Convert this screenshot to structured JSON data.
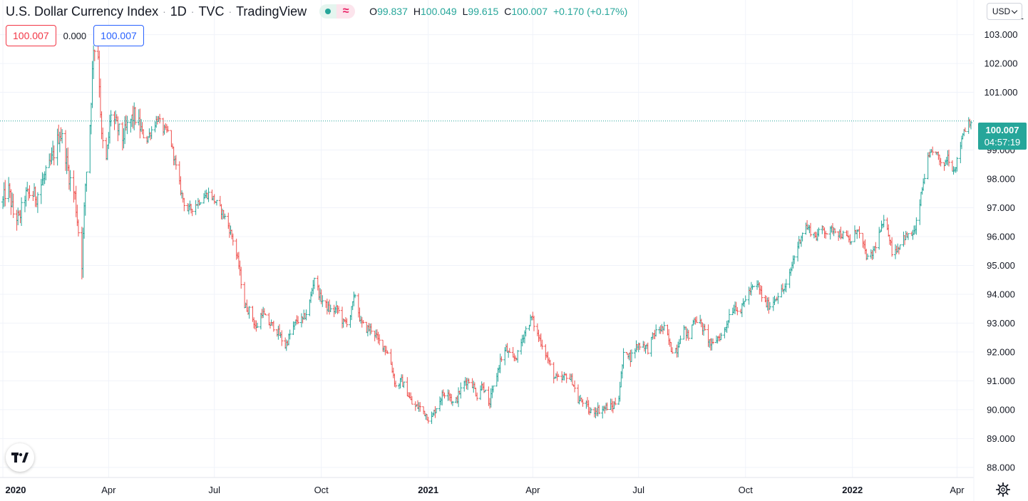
{
  "header": {
    "symbol_name": "U.S. Dollar Currency Index",
    "interval": "1D",
    "exchange": "TVC",
    "source": "TradingView",
    "separator": "·",
    "approx_symbol": "≈",
    "ohlc": {
      "o_label": "O",
      "o_value": "99.837",
      "h_label": "H",
      "h_value": "100.049",
      "l_label": "L",
      "l_value": "99.615",
      "c_label": "C",
      "c_value": "100.007",
      "change": "+0.170 (+0.17%)"
    }
  },
  "badges": {
    "bid": "100.007",
    "spread": "0.000",
    "ask": "100.007"
  },
  "currency_button": {
    "label": "USD"
  },
  "last_price": {
    "price": "100.007",
    "countdown": "04:57:19"
  },
  "icons": {
    "logo": "tradingview-logo-icon",
    "settings": "gear-icon",
    "dropdown": "chevron-down-icon"
  },
  "colors": {
    "up": "#26a69a",
    "down": "#ef5350",
    "grid": "#f0f3fa",
    "text": "#131722",
    "blue": "#2962ff"
  },
  "chart_data": {
    "type": "ohlc-bar",
    "ylim": [
      87.7,
      104.2
    ],
    "y_ticks": [
      88,
      89,
      90,
      91,
      92,
      93,
      94,
      95,
      96,
      97,
      98,
      99,
      101,
      102,
      103
    ],
    "y_tick_labels": [
      "88.000",
      "89.000",
      "90.000",
      "91.000",
      "92.000",
      "93.000",
      "94.000",
      "95.000",
      "96.000",
      "97.000",
      "98.000",
      "99.000",
      "101.000",
      "102.000",
      "103.000"
    ],
    "top_partial_label": "1",
    "x_range": [
      "2020-01-01",
      "2022-04-13"
    ],
    "x_ticks": [
      {
        "label": "2020",
        "date": "2020-01-01",
        "bold": true
      },
      {
        "label": "Apr",
        "date": "2020-04-01",
        "bold": false
      },
      {
        "label": "Jul",
        "date": "2020-07-01",
        "bold": false
      },
      {
        "label": "Oct",
        "date": "2020-10-01",
        "bold": false
      },
      {
        "label": "2021",
        "date": "2021-01-01",
        "bold": true
      },
      {
        "label": "Apr",
        "date": "2021-04-01",
        "bold": false
      },
      {
        "label": "Jul",
        "date": "2021-07-01",
        "bold": false
      },
      {
        "label": "Oct",
        "date": "2021-10-01",
        "bold": false
      },
      {
        "label": "2022",
        "date": "2022-01-01",
        "bold": true
      },
      {
        "label": "Apr",
        "date": "2022-04-01",
        "bold": false
      }
    ],
    "last_price_line": 100.007,
    "close_series": [
      [
        "2020-01-01",
        97.2
      ],
      [
        "2020-01-05",
        97.8
      ],
      [
        "2020-01-10",
        96.8
      ],
      [
        "2020-01-15",
        96.6
      ],
      [
        "2020-01-20",
        97.4
      ],
      [
        "2020-01-25",
        97.5
      ],
      [
        "2020-01-30",
        97.4
      ],
      [
        "2020-02-04",
        97.9
      ],
      [
        "2020-02-09",
        98.3
      ],
      [
        "2020-02-14",
        98.9
      ],
      [
        "2020-02-19",
        99.6
      ],
      [
        "2020-02-22",
        99.3
      ],
      [
        "2020-02-27",
        98.1
      ],
      [
        "2020-03-03",
        97.4
      ],
      [
        "2020-03-06",
        96.2
      ],
      [
        "2020-03-09",
        95.1
      ],
      [
        "2020-03-12",
        97.8
      ],
      [
        "2020-03-16",
        99.9
      ],
      [
        "2020-03-19",
        102.6
      ],
      [
        "2020-03-23",
        102.3
      ],
      [
        "2020-03-26",
        99.4
      ],
      [
        "2020-03-30",
        98.6
      ],
      [
        "2020-04-03",
        100.3
      ],
      [
        "2020-04-08",
        99.8
      ],
      [
        "2020-04-13",
        99.4
      ],
      [
        "2020-04-18",
        99.9
      ],
      [
        "2020-04-23",
        100.2
      ],
      [
        "2020-04-28",
        99.8
      ],
      [
        "2020-05-03",
        99.3
      ],
      [
        "2020-05-08",
        99.7
      ],
      [
        "2020-05-13",
        100.1
      ],
      [
        "2020-05-18",
        99.7
      ],
      [
        "2020-05-23",
        99.6
      ],
      [
        "2020-05-28",
        98.6
      ],
      [
        "2020-06-02",
        97.6
      ],
      [
        "2020-06-07",
        96.9
      ],
      [
        "2020-06-12",
        97.0
      ],
      [
        "2020-06-17",
        97.2
      ],
      [
        "2020-06-22",
        97.4
      ],
      [
        "2020-06-27",
        97.5
      ],
      [
        "2020-07-02",
        97.2
      ],
      [
        "2020-07-07",
        96.9
      ],
      [
        "2020-07-12",
        96.5
      ],
      [
        "2020-07-17",
        95.9
      ],
      [
        "2020-07-22",
        95.0
      ],
      [
        "2020-07-27",
        93.6
      ],
      [
        "2020-08-01",
        93.4
      ],
      [
        "2020-08-06",
        92.8
      ],
      [
        "2020-08-11",
        93.4
      ],
      [
        "2020-08-16",
        93.0
      ],
      [
        "2020-08-21",
        92.9
      ],
      [
        "2020-08-26",
        92.6
      ],
      [
        "2020-08-31",
        92.2
      ],
      [
        "2020-09-05",
        92.7
      ],
      [
        "2020-09-10",
        93.1
      ],
      [
        "2020-09-15",
        93.1
      ],
      [
        "2020-09-20",
        93.5
      ],
      [
        "2020-09-25",
        94.6
      ],
      [
        "2020-09-30",
        93.9
      ],
      [
        "2020-10-05",
        93.6
      ],
      [
        "2020-10-10",
        93.4
      ],
      [
        "2020-10-15",
        93.5
      ],
      [
        "2020-10-20",
        93.0
      ],
      [
        "2020-10-25",
        93.1
      ],
      [
        "2020-10-30",
        94.0
      ],
      [
        "2020-11-04",
        93.0
      ],
      [
        "2020-11-09",
        92.8
      ],
      [
        "2020-11-14",
        92.8
      ],
      [
        "2020-11-19",
        92.4
      ],
      [
        "2020-11-24",
        92.2
      ],
      [
        "2020-11-29",
        91.8
      ],
      [
        "2020-12-04",
        90.8
      ],
      [
        "2020-12-09",
        91.0
      ],
      [
        "2020-12-14",
        90.6
      ],
      [
        "2020-12-19",
        90.1
      ],
      [
        "2020-12-24",
        90.1
      ],
      [
        "2020-12-29",
        89.9
      ],
      [
        "2021-01-03",
        89.6
      ],
      [
        "2021-01-08",
        90.1
      ],
      [
        "2021-01-13",
        90.5
      ],
      [
        "2021-01-18",
        90.7
      ],
      [
        "2021-01-23",
        90.1
      ],
      [
        "2021-01-28",
        90.6
      ],
      [
        "2021-02-02",
        91.0
      ],
      [
        "2021-02-07",
        91.0
      ],
      [
        "2021-02-12",
        90.5
      ],
      [
        "2021-02-17",
        90.9
      ],
      [
        "2021-02-22",
        90.1
      ],
      [
        "2021-02-27",
        90.9
      ],
      [
        "2021-03-04",
        91.7
      ],
      [
        "2021-03-09",
        92.1
      ],
      [
        "2021-03-14",
        91.7
      ],
      [
        "2021-03-19",
        91.9
      ],
      [
        "2021-03-24",
        92.6
      ],
      [
        "2021-03-31",
        93.2
      ],
      [
        "2021-04-05",
        92.6
      ],
      [
        "2021-04-10",
        92.2
      ],
      [
        "2021-04-15",
        91.6
      ],
      [
        "2021-04-20",
        91.1
      ],
      [
        "2021-04-25",
        91.0
      ],
      [
        "2021-04-30",
        91.2
      ],
      [
        "2021-05-05",
        91.0
      ],
      [
        "2021-05-10",
        90.3
      ],
      [
        "2021-05-15",
        90.3
      ],
      [
        "2021-05-20",
        89.9
      ],
      [
        "2021-05-25",
        90.0
      ],
      [
        "2021-05-30",
        90.0
      ],
      [
        "2021-06-04",
        90.1
      ],
      [
        "2021-06-09",
        90.1
      ],
      [
        "2021-06-14",
        90.5
      ],
      [
        "2021-06-19",
        92.2
      ],
      [
        "2021-06-24",
        91.8
      ],
      [
        "2021-06-29",
        92.2
      ],
      [
        "2021-07-04",
        92.3
      ],
      [
        "2021-07-09",
        92.1
      ],
      [
        "2021-07-14",
        92.6
      ],
      [
        "2021-07-19",
        92.8
      ],
      [
        "2021-07-24",
        92.8
      ],
      [
        "2021-07-29",
        92.1
      ],
      [
        "2021-08-03",
        92.1
      ],
      [
        "2021-08-08",
        92.9
      ],
      [
        "2021-08-13",
        92.5
      ],
      [
        "2021-08-18",
        93.2
      ],
      [
        "2021-08-23",
        93.0
      ],
      [
        "2021-08-28",
        92.6
      ],
      [
        "2021-09-02",
        92.2
      ],
      [
        "2021-09-07",
        92.5
      ],
      [
        "2021-09-12",
        92.6
      ],
      [
        "2021-09-17",
        93.3
      ],
      [
        "2021-09-22",
        93.6
      ],
      [
        "2021-09-27",
        93.4
      ],
      [
        "2021-10-02",
        94.0
      ],
      [
        "2021-10-07",
        94.2
      ],
      [
        "2021-10-12",
        94.3
      ],
      [
        "2021-10-17",
        93.7
      ],
      [
        "2021-10-22",
        93.6
      ],
      [
        "2021-10-27",
        93.9
      ],
      [
        "2021-11-01",
        94.1
      ],
      [
        "2021-11-06",
        94.3
      ],
      [
        "2021-11-11",
        95.2
      ],
      [
        "2021-11-16",
        95.8
      ],
      [
        "2021-11-21",
        96.4
      ],
      [
        "2021-11-26",
        96.2
      ],
      [
        "2021-12-01",
        96.0
      ],
      [
        "2021-12-06",
        96.3
      ],
      [
        "2021-12-11",
        96.1
      ],
      [
        "2021-12-16",
        96.3
      ],
      [
        "2021-12-21",
        96.1
      ],
      [
        "2021-12-26",
        96.0
      ],
      [
        "2021-12-31",
        95.8
      ],
      [
        "2022-01-05",
        96.3
      ],
      [
        "2022-01-10",
        95.7
      ],
      [
        "2022-01-15",
        95.1
      ],
      [
        "2022-01-20",
        95.6
      ],
      [
        "2022-01-25",
        96.2
      ],
      [
        "2022-01-30",
        96.6
      ],
      [
        "2022-02-04",
        95.5
      ],
      [
        "2022-02-09",
        95.6
      ],
      [
        "2022-02-14",
        96.0
      ],
      [
        "2022-02-19",
        96.0
      ],
      [
        "2022-02-24",
        96.2
      ],
      [
        "2022-03-01",
        97.4
      ],
      [
        "2022-03-06",
        98.6
      ],
      [
        "2022-03-09",
        98.8
      ],
      [
        "2022-03-14",
        99.0
      ],
      [
        "2022-03-19",
        98.3
      ],
      [
        "2022-03-24",
        98.8
      ],
      [
        "2022-03-29",
        98.3
      ],
      [
        "2022-04-01",
        98.6
      ],
      [
        "2022-04-06",
        99.6
      ],
      [
        "2022-04-11",
        100.0
      ],
      [
        "2022-04-13",
        100.007
      ]
    ]
  }
}
